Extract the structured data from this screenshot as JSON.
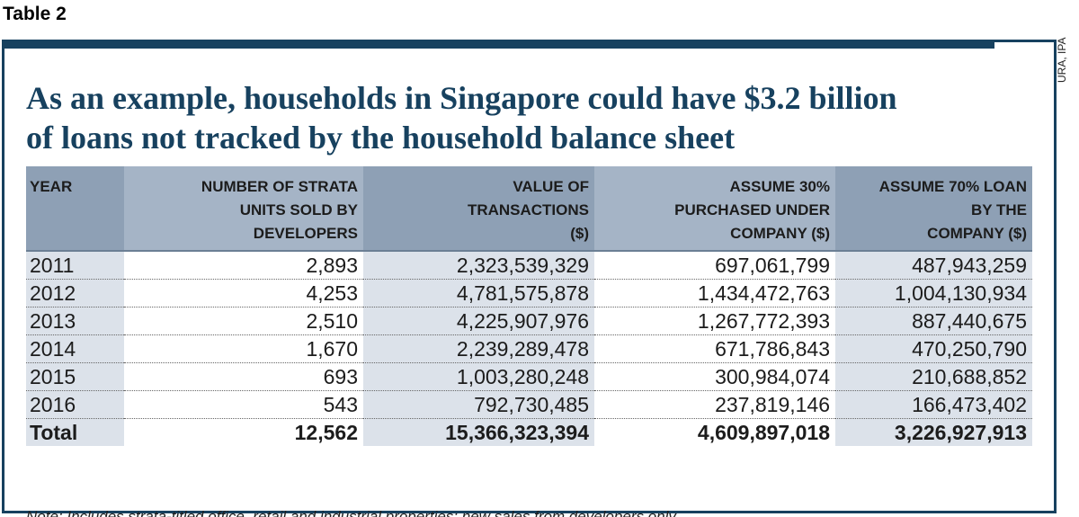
{
  "table_label": "Table 2",
  "source": "URA, IPA",
  "title_lines": [
    "As an example, households in Singapore could have $3.2 billion",
    "of loans not tracked by the household balance sheet"
  ],
  "colors": {
    "frame": "#17415f",
    "header": "#a5b4c6",
    "header_dark": "#8ea0b5",
    "shade": "#dce2ea",
    "title": "#17415f"
  },
  "table": {
    "headers": [
      [
        "YEAR"
      ],
      [
        "NUMBER OF STRATA",
        "UNITS SOLD BY",
        "DEVELOPERS"
      ],
      [
        "VALUE OF",
        "TRANSACTIONS",
        "($)"
      ],
      [
        "ASSUME 30%",
        "PURCHASED UNDER",
        "COMPANY ($)"
      ],
      [
        "ASSUME 70% LOAN",
        "BY THE",
        "COMPANY ($)"
      ]
    ],
    "rows": [
      [
        "2011",
        "2,893",
        "2,323,539,329",
        "697,061,799",
        "487,943,259"
      ],
      [
        "2012",
        "4,253",
        "4,781,575,878",
        "1,434,472,763",
        "1,004,130,934"
      ],
      [
        "2013",
        "2,510",
        "4,225,907,976",
        "1,267,772,393",
        "887,440,675"
      ],
      [
        "2014",
        "1,670",
        "2,239,289,478",
        "671,786,843",
        "470,250,790"
      ],
      [
        "2015",
        "693",
        "1,003,280,248",
        "300,984,074",
        "210,688,852"
      ],
      [
        "2016",
        "543",
        "792,730,485",
        "237,819,146",
        "166,473,402"
      ]
    ],
    "total": [
      "Total",
      "12,562",
      "15,366,323,394",
      "4,609,897,018",
      "3,226,927,913"
    ]
  },
  "note": "Note: Includes strata-titled office, retail and industrial properties; new sales from developers only"
}
